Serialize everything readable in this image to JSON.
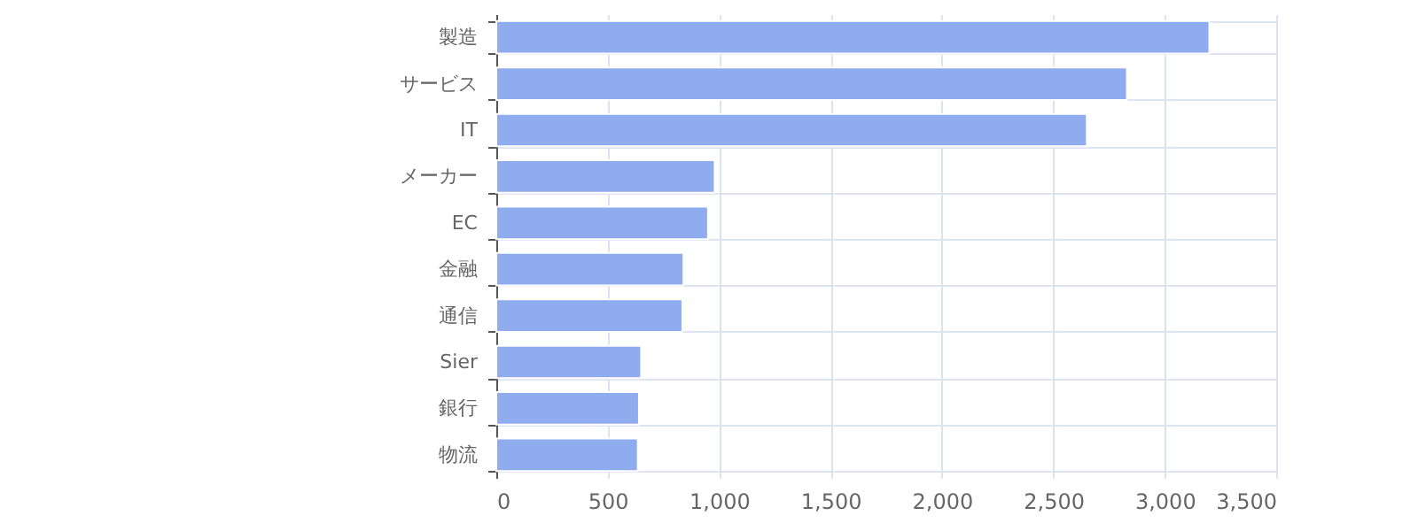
{
  "chart_data": {
    "type": "bar",
    "orientation": "horizontal",
    "categories": [
      "製造",
      "サービス",
      "IT",
      "メーカー",
      "EC",
      "金融",
      "通信",
      "Sier",
      "銀行",
      "物流"
    ],
    "values": [
      3200,
      2830,
      2650,
      980,
      950,
      840,
      835,
      650,
      640,
      635
    ],
    "color": "#8fadee",
    "xlim": [
      0,
      3500
    ],
    "xticks": [
      0,
      500,
      {
        "value": 1000,
        "label": "1,000"
      },
      {
        "value": 1500,
        "label": "1,500"
      },
      {
        "value": 2000,
        "label": "2,000"
      },
      {
        "value": 2500,
        "label": "2,500"
      },
      {
        "value": 3000,
        "label": "3,000"
      },
      {
        "value": 3500,
        "label": "3,500"
      }
    ],
    "grid": true
  }
}
